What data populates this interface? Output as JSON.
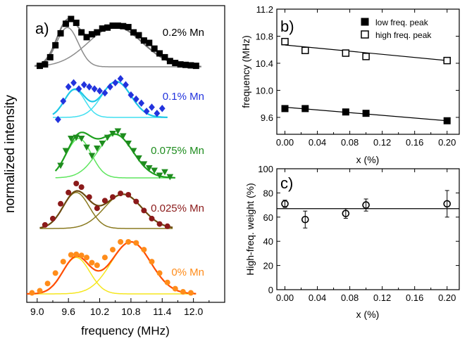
{
  "chart_data": [
    {
      "panel": "a)",
      "type": "scatter",
      "xlabel": "frequency (MHz)",
      "ylabel": "normalized intensity",
      "xlim": [
        8.8,
        12.6
      ],
      "xticks": [
        "9.0",
        "9.6",
        "10.2",
        "10.8",
        "11.4",
        "12.0"
      ],
      "xtick_values": [
        9.0,
        9.6,
        10.2,
        10.8,
        11.4,
        12.0
      ],
      "series": [
        {
          "name": "0.2% Mn",
          "color": "#000000",
          "marker": "square",
          "fit_color": "#7a7a7a",
          "component_color": "#8c8c8c",
          "x": [
            9.05,
            9.15,
            9.25,
            9.35,
            9.45,
            9.55,
            9.65,
            9.75,
            9.85,
            9.95,
            10.05,
            10.15,
            10.25,
            10.35,
            10.45,
            10.55,
            10.65,
            10.75,
            10.85,
            10.95,
            11.05,
            11.15,
            11.25,
            11.35,
            11.45,
            11.55,
            11.65,
            11.75,
            11.85,
            11.95,
            12.05
          ],
          "y": [
            0.02,
            0.05,
            0.2,
            0.45,
            0.7,
            0.9,
            1.0,
            0.92,
            0.72,
            0.62,
            0.68,
            0.72,
            0.8,
            0.82,
            0.86,
            0.86,
            0.85,
            0.83,
            0.72,
            0.66,
            0.55,
            0.5,
            0.38,
            0.28,
            0.2,
            0.12,
            0.08,
            0.05,
            0.04,
            0.03,
            0.02
          ],
          "components": [
            {
              "center": 9.58,
              "width": 0.21,
              "amp": 0.82
            },
            {
              "center": 10.5,
              "width": 0.52,
              "amp": 0.84
            }
          ]
        },
        {
          "name": "0.1% Mn",
          "color": "#2233dd",
          "marker": "diamond",
          "fit_color": "#1ec8e6",
          "component_color": "#40dff0",
          "x": [
            9.4,
            9.5,
            9.6,
            9.7,
            9.8,
            9.9,
            10.0,
            10.1,
            10.2,
            10.3,
            10.4,
            10.5,
            10.6,
            10.7,
            10.8,
            10.9,
            11.0,
            11.1,
            11.2,
            11.3,
            11.4
          ],
          "y": [
            -0.05,
            0.4,
            0.75,
            0.85,
            0.7,
            0.8,
            0.75,
            0.7,
            0.65,
            0.6,
            0.75,
            0.85,
            0.95,
            0.8,
            0.55,
            0.45,
            0.35,
            0.15,
            0.25,
            0.1,
            0.22
          ],
          "components": [
            {
              "center": 9.72,
              "width": 0.2,
              "amp": 0.68
            },
            {
              "center": 10.52,
              "width": 0.28,
              "amp": 0.88
            }
          ]
        },
        {
          "name": "0.075% Mn",
          "color": "#1e8c1e",
          "marker": "triangle-down",
          "fit_color": "#1ea01e",
          "component_color": "#5ee65e",
          "x": [
            9.45,
            9.55,
            9.65,
            9.75,
            9.85,
            9.95,
            10.05,
            10.15,
            10.25,
            10.35,
            10.45,
            10.55,
            10.65,
            10.75,
            10.85,
            10.95,
            11.05,
            11.15,
            11.25,
            11.35,
            11.45,
            11.55
          ],
          "y": [
            0.25,
            0.55,
            0.8,
            0.82,
            0.8,
            0.62,
            0.45,
            0.6,
            0.7,
            0.82,
            0.9,
            0.95,
            0.85,
            0.7,
            0.55,
            0.4,
            0.28,
            0.2,
            0.15,
            0.05,
            0.12,
            0.02
          ],
          "components": [
            {
              "center": 9.8,
              "width": 0.24,
              "amp": 0.8
            },
            {
              "center": 10.5,
              "width": 0.34,
              "amp": 0.88
            }
          ]
        },
        {
          "name": "0.025% Mn",
          "color": "#8b1a1a",
          "marker": "circle",
          "fit_color": "#6b4a10",
          "component_color": "#8a7a20",
          "x": [
            9.15,
            9.3,
            9.45,
            9.6,
            9.75,
            9.85,
            10.0,
            10.15,
            10.3,
            10.45,
            10.6,
            10.75,
            10.9,
            11.05,
            11.2,
            11.35,
            11.5
          ],
          "y": [
            0.08,
            0.22,
            0.55,
            0.8,
            1.0,
            0.92,
            0.7,
            0.45,
            0.62,
            0.7,
            0.78,
            0.75,
            0.6,
            0.4,
            0.22,
            0.1,
            0.05
          ],
          "components": [
            {
              "center": 9.75,
              "width": 0.25,
              "amp": 0.8
            },
            {
              "center": 10.65,
              "width": 0.36,
              "amp": 0.76
            }
          ]
        },
        {
          "name": "0% Mn",
          "color": "#ff8c1a",
          "marker": "circle",
          "fit_color": "#ff4d00",
          "component_color": "#f5e61e",
          "x": [
            8.9,
            9.05,
            9.2,
            9.35,
            9.5,
            9.65,
            9.75,
            9.85,
            9.95,
            10.05,
            10.15,
            10.3,
            10.45,
            10.6,
            10.75,
            10.9,
            11.05,
            11.2,
            11.35,
            11.5,
            11.65,
            11.8,
            11.95
          ],
          "y": [
            0.02,
            0.06,
            0.2,
            0.4,
            0.62,
            0.75,
            0.76,
            0.74,
            0.7,
            0.6,
            0.55,
            0.7,
            0.85,
            1.0,
            1.0,
            0.98,
            0.85,
            0.62,
            0.4,
            0.22,
            0.1,
            0.04,
            0.02
          ],
          "components": [
            {
              "center": 9.75,
              "width": 0.26,
              "amp": 0.7
            },
            {
              "center": 10.8,
              "width": 0.38,
              "amp": 1.0
            }
          ]
        }
      ]
    },
    {
      "panel": "b)",
      "type": "scatter",
      "xlabel": "x (%)",
      "ylabel": "frequency (MHz)",
      "xlim": [
        -0.01,
        0.215
      ],
      "ylim": [
        9.35,
        11.2
      ],
      "xticks": [
        "0.00",
        "0.04",
        "0.08",
        "0.12",
        "0.16",
        "0.20"
      ],
      "xtick_values": [
        0.0,
        0.04,
        0.08,
        0.12,
        0.16,
        0.2
      ],
      "yticks": [
        "9.6",
        "10.0",
        "10.4",
        "10.8",
        "11.2"
      ],
      "ytick_values": [
        9.6,
        10.0,
        10.4,
        10.8,
        11.2
      ],
      "legend": "top-right",
      "series": [
        {
          "name": "low freq. peak",
          "marker": "filled-square",
          "x": [
            0.0,
            0.025,
            0.075,
            0.1,
            0.2
          ],
          "y": [
            9.73,
            9.73,
            9.68,
            9.66,
            9.55
          ],
          "fit": {
            "intercept": 9.75,
            "slope": -1.0
          }
        },
        {
          "name": "high freq. peak",
          "marker": "open-square",
          "x": [
            0.0,
            0.025,
            0.075,
            0.1,
            0.2
          ],
          "y": [
            10.72,
            10.59,
            10.55,
            10.5,
            10.44
          ],
          "fit": {
            "intercept": 10.67,
            "slope": -1.15
          }
        }
      ]
    },
    {
      "panel": "c)",
      "type": "scatter",
      "xlabel": "x (%)",
      "ylabel": "High-freq. weight (%)",
      "xlim": [
        -0.01,
        0.215
      ],
      "ylim": [
        0,
        100
      ],
      "xticks": [
        "0.00",
        "0.04",
        "0.08",
        "0.12",
        "0.16",
        "0.20"
      ],
      "xtick_values": [
        0.0,
        0.04,
        0.08,
        0.12,
        0.16,
        0.2
      ],
      "yticks": [
        "0",
        "20",
        "40",
        "60",
        "80",
        "100"
      ],
      "ytick_values": [
        0,
        20,
        40,
        60,
        80,
        100
      ],
      "series": [
        {
          "name": "",
          "marker": "open-circle",
          "x": [
            0.0,
            0.025,
            0.075,
            0.1,
            0.2
          ],
          "y": [
            71,
            58,
            63,
            70,
            71
          ],
          "err": [
            3,
            7,
            4,
            5,
            11
          ]
        }
      ],
      "hline": 67
    }
  ]
}
